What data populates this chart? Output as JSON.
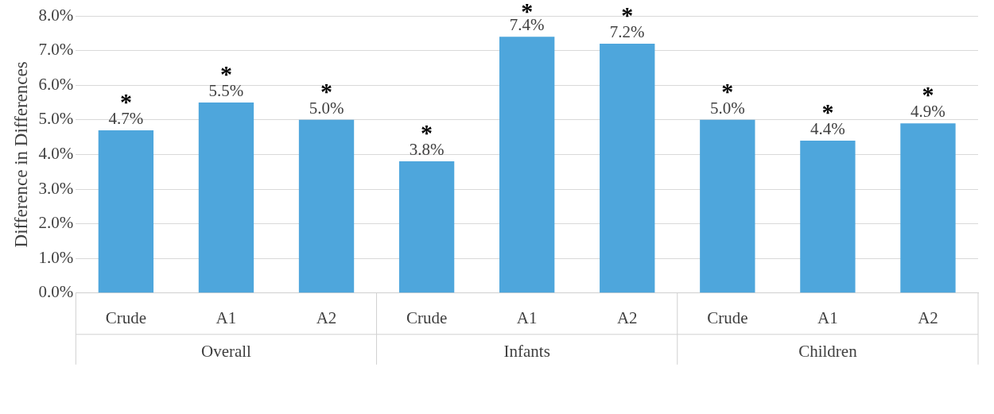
{
  "chart_data": {
    "type": "bar",
    "ylabel": "Difference in Differences",
    "categories": [
      "Crude",
      "A1",
      "A2",
      "Crude",
      "A1",
      "A2",
      "Crude",
      "A1",
      "A2"
    ],
    "values": [
      4.7,
      5.5,
      5.0,
      3.8,
      7.4,
      7.2,
      5.0,
      4.4,
      4.9
    ],
    "value_labels": [
      "4.7%",
      "5.5%",
      "5.0%",
      "3.8%",
      "7.4%",
      "7.2%",
      "5.0%",
      "4.4%",
      "4.9%"
    ],
    "color": "#4ea6dc",
    "annotations": [
      "Overall",
      "Infants",
      "Children",
      "*",
      "*",
      "*",
      "*",
      "*",
      "*",
      "*",
      "*",
      "*"
    ],
    "ylim": [
      0,
      8
    ],
    "yticks": [
      {
        "value": 0,
        "label": "0.0%"
      },
      {
        "value": 1,
        "label": "1.0%"
      },
      {
        "value": 2,
        "label": "2.0%"
      },
      {
        "value": 3,
        "label": "3.0%"
      },
      {
        "value": 4,
        "label": "4.0%"
      },
      {
        "value": 5,
        "label": "5.0%"
      },
      {
        "value": 6,
        "label": "6.0%"
      },
      {
        "value": 7,
        "label": "7.0%"
      },
      {
        "value": 8,
        "label": "8.0%"
      }
    ],
    "grid": "y",
    "legend": false
  }
}
